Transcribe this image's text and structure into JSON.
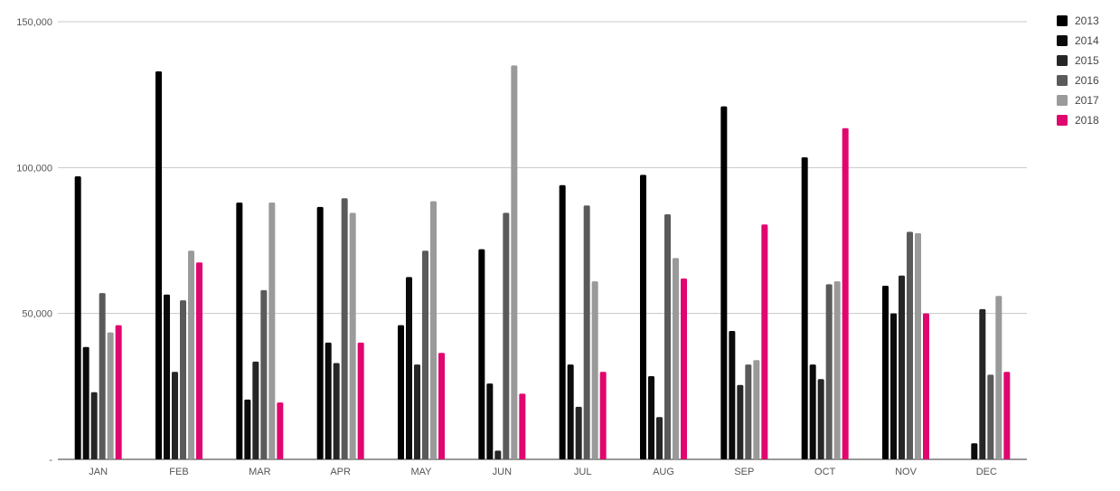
{
  "chart_data": {
    "type": "bar",
    "categories": [
      "JAN",
      "FEB",
      "MAR",
      "APR",
      "MAY",
      "JUN",
      "JUL",
      "AUG",
      "SEP",
      "OCT",
      "NOV",
      "DEC"
    ],
    "series": [
      {
        "name": "2013",
        "color": "#000000",
        "values": [
          97000,
          133000,
          88000,
          86500,
          46000,
          72000,
          94000,
          97500,
          121000,
          103500,
          59500,
          0
        ]
      },
      {
        "name": "2014",
        "color": "#0b0b0b",
        "values": [
          38500,
          56500,
          20500,
          40000,
          62500,
          26000,
          32500,
          28500,
          44000,
          32500,
          50000,
          5500
        ]
      },
      {
        "name": "2015",
        "color": "#262626",
        "values": [
          23000,
          30000,
          33500,
          33000,
          32500,
          3000,
          18000,
          14500,
          25500,
          27500,
          63000,
          51500
        ]
      },
      {
        "name": "2016",
        "color": "#5a5a5a",
        "values": [
          57000,
          54500,
          58000,
          89500,
          71500,
          84500,
          87000,
          84000,
          32500,
          60000,
          78000,
          29000
        ]
      },
      {
        "name": "2017",
        "color": "#9a9a9a",
        "values": [
          43500,
          71500,
          88000,
          84500,
          88500,
          135000,
          61000,
          69000,
          34000,
          61000,
          77500,
          56000
        ]
      },
      {
        "name": "2018",
        "color": "#e0066f",
        "values": [
          46000,
          67500,
          19500,
          40000,
          36500,
          22500,
          30000,
          62000,
          80500,
          113500,
          50000,
          30000
        ]
      }
    ],
    "y_ticks": [
      {
        "value": 0,
        "label": "-"
      },
      {
        "value": 50000,
        "label": "50,000"
      },
      {
        "value": 100000,
        "label": "100,000"
      },
      {
        "value": 150000,
        "label": "150,000"
      }
    ],
    "ylim": [
      0,
      150000
    ],
    "grid": true,
    "legend_position": "right"
  }
}
